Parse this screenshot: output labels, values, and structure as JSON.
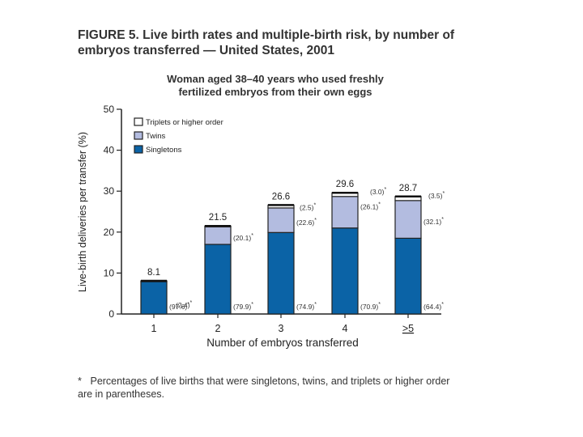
{
  "figure": {
    "label": "FIGURE 5.",
    "title": "Live birth rates and multiple-birth risk, by number of embryos transferred — United States, 2001",
    "subtitle_line1": "Woman aged 38–40 years who used freshly",
    "subtitle_line2": "fertilized embryos from their own eggs",
    "footnote_marker": "*",
    "footnote": "Percentages of live births that were singletons, twins, and triplets or higher order are in parentheses."
  },
  "colors": {
    "singletons": "#0b63a6",
    "twins": "#b3bce0",
    "triplets": "#ffffff",
    "outline": "#222222"
  },
  "chart_data": {
    "type": "bar",
    "stacked": true,
    "title": "Woman aged 38–40 years who used freshly fertilized embryos from their own eggs",
    "xlabel": "Number of embryos transferred",
    "ylabel": "Live-birth deliveries per transfer (%)",
    "ylim": [
      0,
      50
    ],
    "yticks": [
      0,
      10,
      20,
      30,
      40,
      50
    ],
    "categories": [
      "1",
      "2",
      "3",
      "4",
      ">5"
    ],
    "category_underline": [
      false,
      false,
      false,
      false,
      true
    ],
    "totals": [
      8.1,
      21.5,
      26.6,
      29.6,
      28.7
    ],
    "total_labels": [
      "8.1",
      "21.5",
      "26.6",
      "29.6",
      "28.7"
    ],
    "series": [
      {
        "name": "Singletons",
        "key": "singletons",
        "values": [
          7.9,
          17.0,
          19.9,
          21.0,
          18.5
        ],
        "pct_labels": [
          "(97.6)",
          "(79.9)",
          "(74.9)",
          "(70.9)",
          "(64.4)"
        ]
      },
      {
        "name": "Twins",
        "key": "twins",
        "values": [
          0.2,
          4.3,
          6.0,
          7.7,
          9.2
        ],
        "pct_labels": [
          "(2.4)",
          "(20.1)",
          "(22.6)",
          "(26.1)",
          "(32.1)"
        ]
      },
      {
        "name": "Triplets or higher order",
        "key": "triplets",
        "values": [
          0,
          0.2,
          0.7,
          0.9,
          1.0
        ],
        "pct_labels": [
          "",
          "",
          "(2.5)",
          "(3.0)",
          "(3.5)"
        ]
      }
    ],
    "legend": [
      "Triplets or higher order",
      "Twins",
      "Singletons"
    ],
    "legend_position": "top-left"
  }
}
